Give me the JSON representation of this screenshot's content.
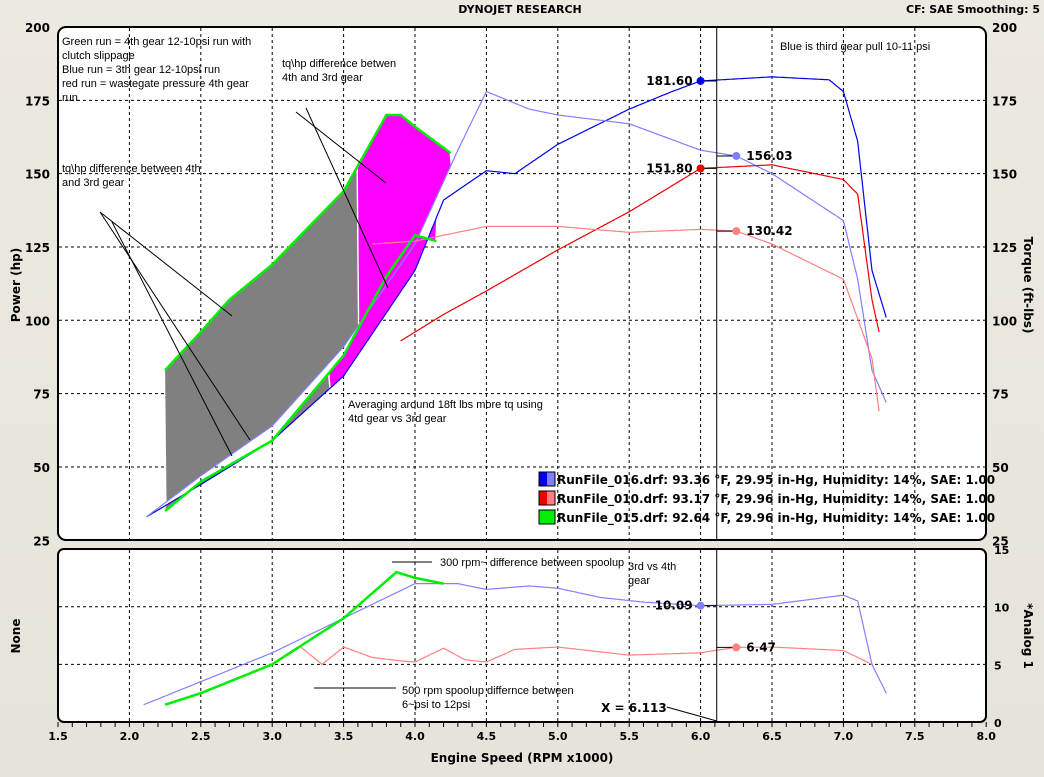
{
  "header": {
    "title": "DYNOJET RESEARCH",
    "status": "CF: SAE  Smoothing: 5"
  },
  "colors": {
    "blue": "#0000ee",
    "light_blue": "#8080ff",
    "red": "#ee0000",
    "light_red": "#ff8080",
    "green": "#00ee00",
    "magenta": "#ff00ff",
    "gray": "#808080"
  },
  "chart_data": [
    {
      "type": "line",
      "title": "DYNOJET RESEARCH",
      "xlabel": "Engine Speed (RPM x1000)",
      "ylabel": "Power (hp)",
      "y2label": "Torque (ft-lbs)",
      "xlim": [
        1.5,
        8.0
      ],
      "ylim": [
        25,
        200
      ],
      "xticks": [
        "1.5",
        "2.0",
        "2.5",
        "3.0",
        "3.5",
        "4.0",
        "4.5",
        "5.0",
        "5.5",
        "6.0",
        "6.5",
        "7.0",
        "7.5",
        "8.0"
      ],
      "yticks": [
        "25",
        "50",
        "75",
        "100",
        "125",
        "150",
        "175",
        "200"
      ],
      "grid": true,
      "legend_position": "bottom-right",
      "legend": [
        {
          "label": "RunFile_016.drf: 93.36 °F, 29.95 in-Hg, Humidity: 14%, SAE: 1.00",
          "colors": [
            "#0000ee",
            "#8080ff"
          ]
        },
        {
          "label": "RunFile_010.drf: 93.17 °F, 29.96 in-Hg, Humidity: 14%, SAE: 1.00",
          "colors": [
            "#ee0000",
            "#ff8080"
          ]
        },
        {
          "label": "RunFile_015.drf: 92.64 °F, 29.96 in-Hg, Humidity: 14%, SAE: 1.00",
          "colors": [
            "#00ee00",
            "#00ee00"
          ]
        }
      ],
      "series": [
        {
          "name": "RunFile_016 power",
          "color": "#0000ee",
          "x": [
            2.12,
            2.5,
            3.0,
            3.5,
            4.0,
            4.2,
            4.5,
            4.7,
            5.0,
            5.5,
            5.8,
            6.0,
            6.5,
            6.9,
            7.0,
            7.1,
            7.2,
            7.3
          ],
          "y": [
            33,
            44,
            59,
            81,
            117,
            141,
            151,
            150,
            160,
            172,
            178,
            181.6,
            183,
            182,
            178,
            161,
            117,
            101
          ]
        },
        {
          "name": "RunFile_016 torque",
          "color": "#8080ff",
          "x": [
            2.12,
            2.5,
            3.0,
            3.5,
            4.0,
            4.3,
            4.5,
            4.8,
            5.0,
            5.5,
            6.0,
            6.25,
            6.5,
            7.0,
            7.1,
            7.2,
            7.3
          ],
          "y": [
            33,
            47,
            64,
            91,
            126,
            158,
            178,
            172,
            170,
            167,
            158,
            156.03,
            150,
            134,
            114,
            83,
            72
          ]
        },
        {
          "name": "RunFile_010 power",
          "color": "#ee0000",
          "x": [
            3.9,
            4.2,
            4.5,
            5.0,
            5.5,
            6.0,
            6.5,
            7.0,
            7.1,
            7.2,
            7.25
          ],
          "y": [
            93,
            102,
            110,
            124,
            137,
            151.8,
            153,
            148,
            143,
            107,
            96
          ]
        },
        {
          "name": "RunFile_010 torque",
          "color": "#ff8080",
          "x": [
            3.7,
            4.0,
            4.5,
            5.0,
            5.5,
            6.0,
            6.25,
            6.5,
            7.0,
            7.2,
            7.25
          ],
          "y": [
            126,
            127,
            132,
            132,
            130,
            131,
            130.42,
            126,
            114,
            87,
            69
          ]
        },
        {
          "name": "RunFile_015 power",
          "color": "#00ee00",
          "x": [
            2.25,
            2.5,
            3.0,
            3.5,
            3.8,
            4.0,
            4.15
          ],
          "y": [
            35,
            45,
            59,
            88,
            115,
            129,
            127
          ]
        },
        {
          "name": "RunFile_015 torque",
          "color": "#00ee00",
          "x": [
            2.25,
            2.5,
            2.7,
            3.0,
            3.5,
            3.8,
            3.9,
            4.0,
            4.25
          ],
          "y": [
            83,
            96,
            107,
            119,
            144,
            170,
            170,
            166,
            157
          ]
        }
      ],
      "markers": [
        {
          "label": "181.60",
          "x": 6.0,
          "y": 181.6,
          "color": "#0000ee",
          "side": "left"
        },
        {
          "label": "156.03",
          "x": 6.25,
          "y": 156.03,
          "color": "#8080ff",
          "side": "right"
        },
        {
          "label": "151.80",
          "x": 6.0,
          "y": 151.8,
          "color": "#ee0000",
          "side": "left"
        },
        {
          "label": "130.42",
          "x": 6.25,
          "y": 130.42,
          "color": "#ff8080",
          "side": "right"
        }
      ],
      "annotations": [
        {
          "lines": [
            "Green run = 4th gear 12-10psi run with",
            "clutch slippage",
            "Blue run = 3th gear 12-10psi run",
            "red run = wastegate pressure 4th gear",
            "run"
          ]
        },
        {
          "lines": [
            "tq\\hp difference betwen",
            "4th and 3rd gear"
          ]
        },
        {
          "lines": [
            "tq\\hp difference between 4th",
            "and 3rd gear"
          ]
        },
        {
          "lines": [
            "Blue is third gear pull 10-11 psi"
          ]
        },
        {
          "lines": [
            "Averaging around 18ft lbs more tq using",
            "4td gear vs 3rd gear"
          ]
        }
      ]
    },
    {
      "type": "line",
      "ylabel": "None",
      "y2label": "*Analog 1",
      "xlim": [
        1.5,
        8.0
      ],
      "ylim": [
        0,
        15
      ],
      "yticks": [
        "0",
        "5",
        "10",
        "15"
      ],
      "grid": true,
      "series": [
        {
          "name": "RunFile_016 analog",
          "color": "#8080ff",
          "x": [
            2.1,
            2.5,
            3.0,
            3.5,
            4.0,
            4.3,
            4.5,
            4.8,
            5.0,
            5.3,
            5.6,
            6.0,
            6.5,
            7.0,
            7.1,
            7.2,
            7.3
          ],
          "y": [
            1.5,
            3.5,
            6,
            9,
            12,
            12,
            11.5,
            11.8,
            11.6,
            10.8,
            10.4,
            10.09,
            10.2,
            11,
            10.5,
            5,
            2.5
          ]
        },
        {
          "name": "RunFile_015 analog",
          "color": "#00ee00",
          "x": [
            2.25,
            2.5,
            3.0,
            3.5,
            3.87,
            4.0,
            4.2
          ],
          "y": [
            1.5,
            2.5,
            5,
            9,
            13,
            12.5,
            12
          ]
        },
        {
          "name": "RunFile_010 analog",
          "color": "#ff8080",
          "x": [
            3.2,
            3.35,
            3.5,
            3.7,
            3.9,
            4.0,
            4.2,
            4.35,
            4.5,
            4.7,
            5.0,
            5.5,
            6.0,
            6.1,
            6.25,
            6.5,
            7.0,
            7.2
          ],
          "y": [
            6.5,
            5,
            6.5,
            5.6,
            5.3,
            5.2,
            6.4,
            5.4,
            5.2,
            6.3,
            6.5,
            5.8,
            6.0,
            6.2,
            6.47,
            6.5,
            6.2,
            5
          ]
        }
      ],
      "markers": [
        {
          "label": "10.09",
          "x": 6.0,
          "y": 10.09,
          "color": "#8080ff",
          "side": "left"
        },
        {
          "label": "6.47",
          "x": 6.25,
          "y": 6.47,
          "color": "#ff8080",
          "side": "right"
        }
      ],
      "annotations": [
        {
          "lines": [
            "300 rpm~ difference between spoolup"
          ]
        },
        {
          "lines": [
            "3rd vs 4th",
            "gear"
          ]
        },
        {
          "lines": [
            "500 rpm spoolup differnce between",
            "6~psi to 12psi"
          ]
        }
      ],
      "cursor": {
        "label": "X = 6.113",
        "x": 6.113
      }
    }
  ]
}
